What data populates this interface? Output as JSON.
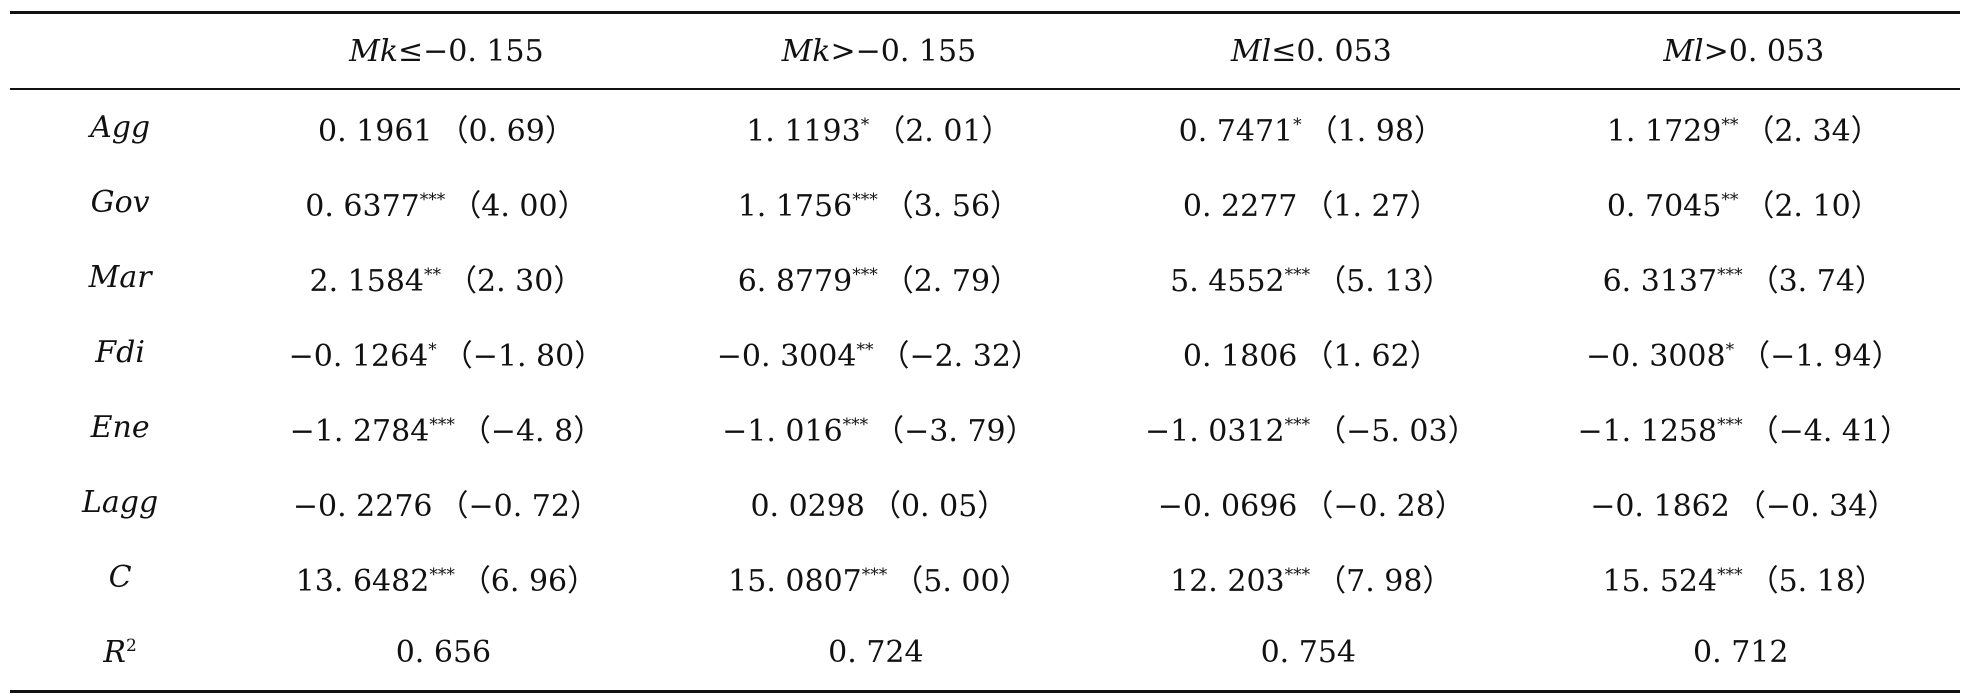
{
  "table": {
    "columns": [
      {
        "var": "Mk",
        "op": "≤−0. 155"
      },
      {
        "var": "Mk",
        "op": ">−0. 155"
      },
      {
        "var": "Ml",
        "op": "≤0. 053"
      },
      {
        "var": "Ml",
        "op": ">0. 053"
      }
    ],
    "rows": [
      {
        "label": "Agg",
        "label_sup": "",
        "cells": [
          {
            "coef": "0. 1961",
            "stars": "",
            "t": "（0. 69）"
          },
          {
            "coef": "1. 1193",
            "stars": "*",
            "t": "（2. 01）"
          },
          {
            "coef": "0. 7471",
            "stars": "*",
            "t": "（1. 98）"
          },
          {
            "coef": "1. 1729",
            "stars": "**",
            "t": "（2. 34）"
          }
        ]
      },
      {
        "label": "Gov",
        "label_sup": "",
        "cells": [
          {
            "coef": "0. 6377",
            "stars": "***",
            "t": "（4. 00）"
          },
          {
            "coef": "1. 1756",
            "stars": "***",
            "t": "（3. 56）"
          },
          {
            "coef": "0. 2277",
            "stars": "",
            "t": "（1. 27）"
          },
          {
            "coef": "0. 7045",
            "stars": "**",
            "t": "（2. 10）"
          }
        ]
      },
      {
        "label": "Mar",
        "label_sup": "",
        "cells": [
          {
            "coef": "2. 1584",
            "stars": "**",
            "t": "（2. 30）"
          },
          {
            "coef": "6. 8779",
            "stars": "***",
            "t": "（2. 79）"
          },
          {
            "coef": "5. 4552",
            "stars": "***",
            "t": "（5. 13）"
          },
          {
            "coef": "6. 3137",
            "stars": "***",
            "t": "（3. 74）"
          }
        ]
      },
      {
        "label": "Fdi",
        "label_sup": "",
        "cells": [
          {
            "coef": "−0. 1264",
            "stars": "*",
            "t": "（−1. 80）"
          },
          {
            "coef": "−0. 3004",
            "stars": "**",
            "t": "（−2. 32）"
          },
          {
            "coef": "0. 1806",
            "stars": "",
            "t": "（1. 62）"
          },
          {
            "coef": "−0. 3008",
            "stars": "*",
            "t": "（−1. 94）"
          }
        ]
      },
      {
        "label": "Ene",
        "label_sup": "",
        "cells": [
          {
            "coef": "−1. 2784",
            "stars": "***",
            "t": "（−4. 8）"
          },
          {
            "coef": "−1. 016",
            "stars": "***",
            "t": "（−3. 79）"
          },
          {
            "coef": "−1. 0312",
            "stars": "***",
            "t": "（−5. 03）"
          },
          {
            "coef": "−1. 1258",
            "stars": "***",
            "t": "（−4. 41）"
          }
        ]
      },
      {
        "label": "Lagg",
        "label_sup": "",
        "cells": [
          {
            "coef": "−0. 2276",
            "stars": "",
            "t": "（−0. 72）"
          },
          {
            "coef": "0. 0298",
            "stars": "",
            "t": "（0. 05）"
          },
          {
            "coef": "−0. 0696",
            "stars": "",
            "t": "（−0. 28）"
          },
          {
            "coef": "−0. 1862",
            "stars": "",
            "t": "（−0. 34）"
          }
        ]
      },
      {
        "label": "C",
        "label_sup": "",
        "cells": [
          {
            "coef": "13. 6482",
            "stars": "***",
            "t": "（6. 96）"
          },
          {
            "coef": "15. 0807",
            "stars": "***",
            "t": "（5. 00）"
          },
          {
            "coef": "12. 203",
            "stars": "***",
            "t": "（7. 98）"
          },
          {
            "coef": "15. 524",
            "stars": "***",
            "t": "（5. 18）"
          }
        ]
      },
      {
        "label": "R",
        "label_sup": "2",
        "cells": [
          {
            "coef": "0. 656",
            "stars": "",
            "t": ""
          },
          {
            "coef": "0. 724",
            "stars": "",
            "t": ""
          },
          {
            "coef": "0. 754",
            "stars": "",
            "t": ""
          },
          {
            "coef": "0. 712",
            "stars": "",
            "t": ""
          }
        ]
      }
    ]
  }
}
